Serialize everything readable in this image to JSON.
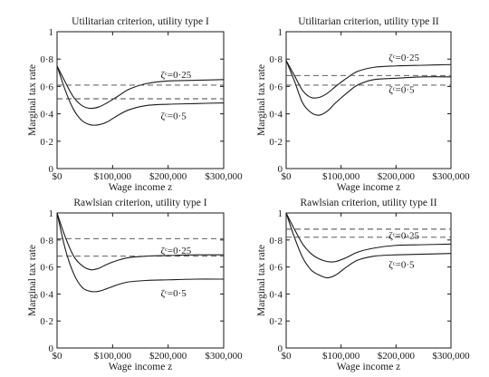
{
  "chart_data": [
    {
      "type": "line",
      "title": "Utilitarian criterion, utility type I",
      "xlabel": "Wage income z",
      "ylabel": "Marginal tax rate",
      "xlim": [
        0,
        300000
      ],
      "ylim": [
        0,
        1
      ],
      "x_ticks": [
        "$0",
        "$100,000",
        "$200,000",
        "$300,000"
      ],
      "y_ticks": [
        "0",
        "0·2",
        "0·4",
        "0·6",
        "0·8",
        "1"
      ],
      "grid": false,
      "annotations": [
        "ζᶜ=0·25",
        "ζᶜ=0·5"
      ],
      "series": [
        {
          "style": "solid",
          "label_ref": 0,
          "x": [
            0,
            15000,
            30000,
            45000,
            60000,
            75000,
            90000,
            110000,
            130000,
            160000,
            200000,
            250000,
            300000
          ],
          "y": [
            0.75,
            0.63,
            0.52,
            0.46,
            0.44,
            0.45,
            0.48,
            0.53,
            0.58,
            0.62,
            0.64,
            0.645,
            0.65
          ]
        },
        {
          "style": "solid",
          "label_ref": 1,
          "x": [
            0,
            15000,
            30000,
            45000,
            60000,
            75000,
            90000,
            110000,
            130000,
            160000,
            200000,
            250000,
            300000
          ],
          "y": [
            0.75,
            0.57,
            0.43,
            0.35,
            0.32,
            0.32,
            0.34,
            0.39,
            0.43,
            0.46,
            0.47,
            0.475,
            0.48
          ]
        },
        {
          "style": "dashed",
          "label_ref": 0,
          "x": [
            0,
            300000
          ],
          "y": [
            0.61,
            0.61
          ]
        },
        {
          "style": "dashed",
          "label_ref": 1,
          "x": [
            0,
            300000
          ],
          "y": [
            0.51,
            0.51
          ]
        }
      ]
    },
    {
      "type": "line",
      "title": "Utilitarian criterion, utility type II",
      "xlabel": "Wage income z",
      "ylabel": "Marginal tax rate",
      "xlim": [
        0,
        300000
      ],
      "ylim": [
        0,
        1
      ],
      "x_ticks": [
        "$0",
        "$100,000",
        "$200,000",
        "$300,000"
      ],
      "y_ticks": [
        "0",
        "0·2",
        "0·4",
        "0·6",
        "0·8",
        "1"
      ],
      "grid": false,
      "annotations": [
        "ζᶜ=0·25",
        "ζᶜ=0·5"
      ],
      "series": [
        {
          "style": "solid",
          "label_ref": 0,
          "x": [
            0,
            15000,
            30000,
            45000,
            60000,
            75000,
            90000,
            110000,
            130000,
            160000,
            200000,
            250000,
            300000
          ],
          "y": [
            0.79,
            0.68,
            0.57,
            0.52,
            0.52,
            0.55,
            0.6,
            0.66,
            0.71,
            0.74,
            0.75,
            0.755,
            0.76
          ]
        },
        {
          "style": "solid",
          "label_ref": 1,
          "x": [
            0,
            15000,
            30000,
            45000,
            60000,
            75000,
            90000,
            110000,
            130000,
            160000,
            200000,
            250000,
            300000
          ],
          "y": [
            0.79,
            0.64,
            0.48,
            0.41,
            0.39,
            0.42,
            0.48,
            0.55,
            0.61,
            0.65,
            0.66,
            0.67,
            0.67
          ]
        },
        {
          "style": "dashed",
          "label_ref": 0,
          "x": [
            0,
            300000
          ],
          "y": [
            0.68,
            0.68
          ]
        },
        {
          "style": "dashed",
          "label_ref": 1,
          "x": [
            0,
            300000
          ],
          "y": [
            0.61,
            0.61
          ]
        }
      ]
    },
    {
      "type": "line",
      "title": "Rawlsian criterion, utility type I",
      "xlabel": "Wage income z",
      "ylabel": "Marginal tax rate",
      "xlim": [
        0,
        300000
      ],
      "ylim": [
        0,
        1
      ],
      "x_ticks": [
        "$0",
        "$100,000",
        "$200,000",
        "$300,000"
      ],
      "y_ticks": [
        "0",
        "0·2",
        "0·4",
        "0·6",
        "0·8",
        "1"
      ],
      "grid": false,
      "annotations": [
        "ζᶜ=0·25",
        "ζᶜ=0·5"
      ],
      "series": [
        {
          "style": "solid",
          "label_ref": 0,
          "x": [
            0,
            15000,
            30000,
            45000,
            60000,
            75000,
            90000,
            110000,
            130000,
            160000,
            200000,
            250000,
            300000
          ],
          "y": [
            1.0,
            0.82,
            0.68,
            0.61,
            0.58,
            0.59,
            0.62,
            0.65,
            0.67,
            0.68,
            0.685,
            0.69,
            0.69
          ]
        },
        {
          "style": "solid",
          "label_ref": 1,
          "x": [
            0,
            15000,
            30000,
            45000,
            60000,
            75000,
            90000,
            110000,
            130000,
            160000,
            200000,
            250000,
            300000
          ],
          "y": [
            1.0,
            0.73,
            0.55,
            0.45,
            0.42,
            0.42,
            0.44,
            0.47,
            0.49,
            0.5,
            0.505,
            0.51,
            0.51
          ]
        },
        {
          "style": "dashed",
          "label_ref": 0,
          "x": [
            0,
            300000
          ],
          "y": [
            0.81,
            0.81
          ]
        },
        {
          "style": "dashed",
          "label_ref": 1,
          "x": [
            0,
            300000
          ],
          "y": [
            0.68,
            0.68
          ]
        }
      ]
    },
    {
      "type": "line",
      "title": "Rawlsian criterion, utility type II",
      "xlabel": "Wage income z",
      "ylabel": "Marginal tax rate",
      "xlim": [
        0,
        300000
      ],
      "ylim": [
        0,
        1
      ],
      "x_ticks": [
        "$0",
        "$100,000",
        "$200,000",
        "$300,000"
      ],
      "y_ticks": [
        "0",
        "0·2",
        "0·4",
        "0·6",
        "0·8",
        "1"
      ],
      "grid": false,
      "annotations": [
        "ζᶜ=0·25",
        "ζᶜ=0·5"
      ],
      "series": [
        {
          "style": "solid",
          "label_ref": 0,
          "x": [
            0,
            15000,
            30000,
            45000,
            60000,
            75000,
            90000,
            110000,
            130000,
            160000,
            200000,
            250000,
            300000
          ],
          "y": [
            1.0,
            0.88,
            0.77,
            0.7,
            0.66,
            0.64,
            0.64,
            0.67,
            0.71,
            0.74,
            0.76,
            0.765,
            0.77
          ]
        },
        {
          "style": "solid",
          "label_ref": 1,
          "x": [
            0,
            15000,
            30000,
            45000,
            60000,
            75000,
            90000,
            110000,
            130000,
            160000,
            200000,
            250000,
            300000
          ],
          "y": [
            1.0,
            0.82,
            0.67,
            0.58,
            0.54,
            0.52,
            0.54,
            0.6,
            0.65,
            0.68,
            0.69,
            0.695,
            0.7
          ]
        },
        {
          "style": "dashed",
          "label_ref": 0,
          "x": [
            0,
            300000
          ],
          "y": [
            0.88,
            0.88
          ]
        },
        {
          "style": "dashed",
          "label_ref": 1,
          "x": [
            0,
            300000
          ],
          "y": [
            0.82,
            0.82
          ]
        }
      ]
    }
  ]
}
